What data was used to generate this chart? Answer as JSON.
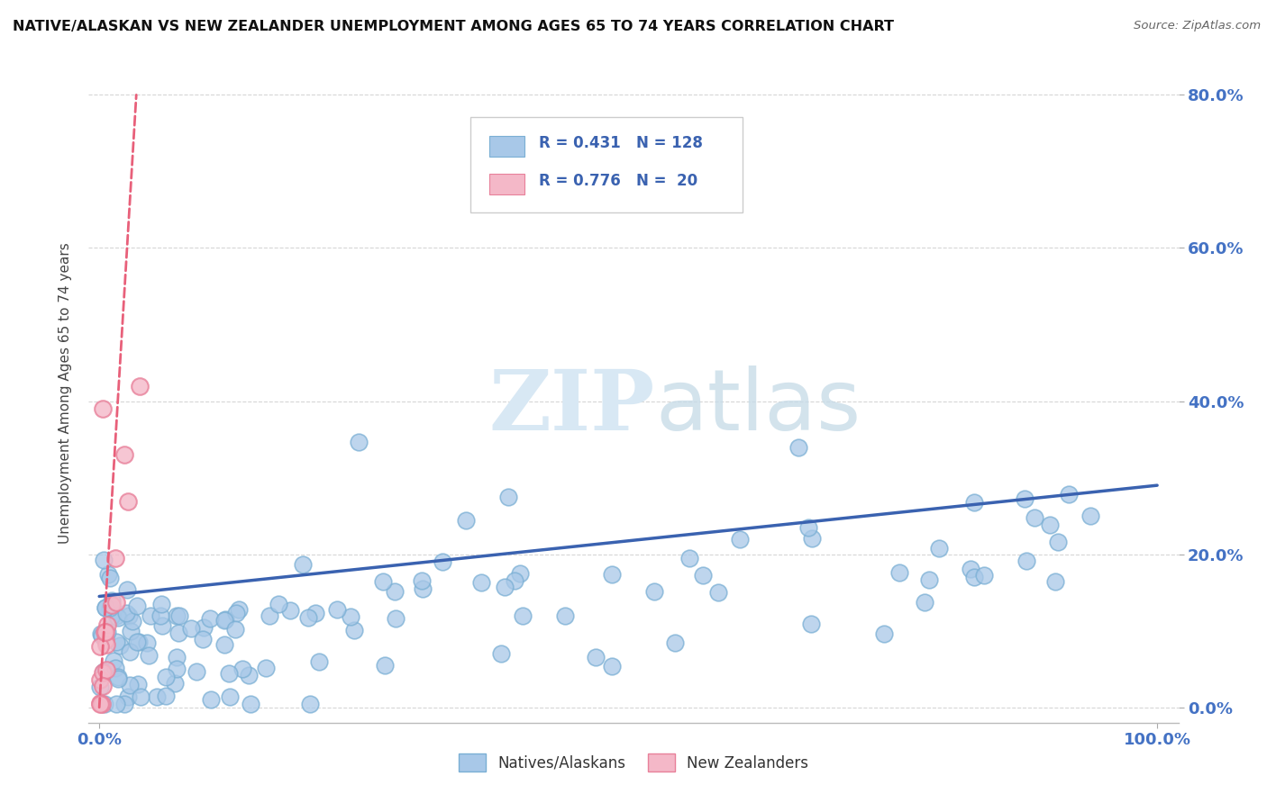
{
  "title": "NATIVE/ALASKAN VS NEW ZEALANDER UNEMPLOYMENT AMONG AGES 65 TO 74 YEARS CORRELATION CHART",
  "source": "Source: ZipAtlas.com",
  "ylabel": "Unemployment Among Ages 65 to 74 years",
  "blue_color": "#a8c8e8",
  "blue_edge_color": "#7aafd4",
  "pink_color": "#f4b8c8",
  "pink_edge_color": "#e8809a",
  "blue_line_color": "#3a62b0",
  "pink_line_color": "#e8607a",
  "watermark_color": "#d8e8f4",
  "grid_color": "#cccccc",
  "bg_color": "#ffffff",
  "tick_color": "#4472c4",
  "blue_reg_start_y": 14.5,
  "blue_reg_end_y": 29.0,
  "pink_reg_start_x": 0.0,
  "pink_reg_start_y": 0.0,
  "pink_reg_end_x": 3.5,
  "pink_reg_end_y": 80.0,
  "xmin": 0,
  "xmax": 100,
  "ymin": 0,
  "ymax": 80,
  "marker_size": 180,
  "blue_N": 128,
  "pink_N": 20
}
